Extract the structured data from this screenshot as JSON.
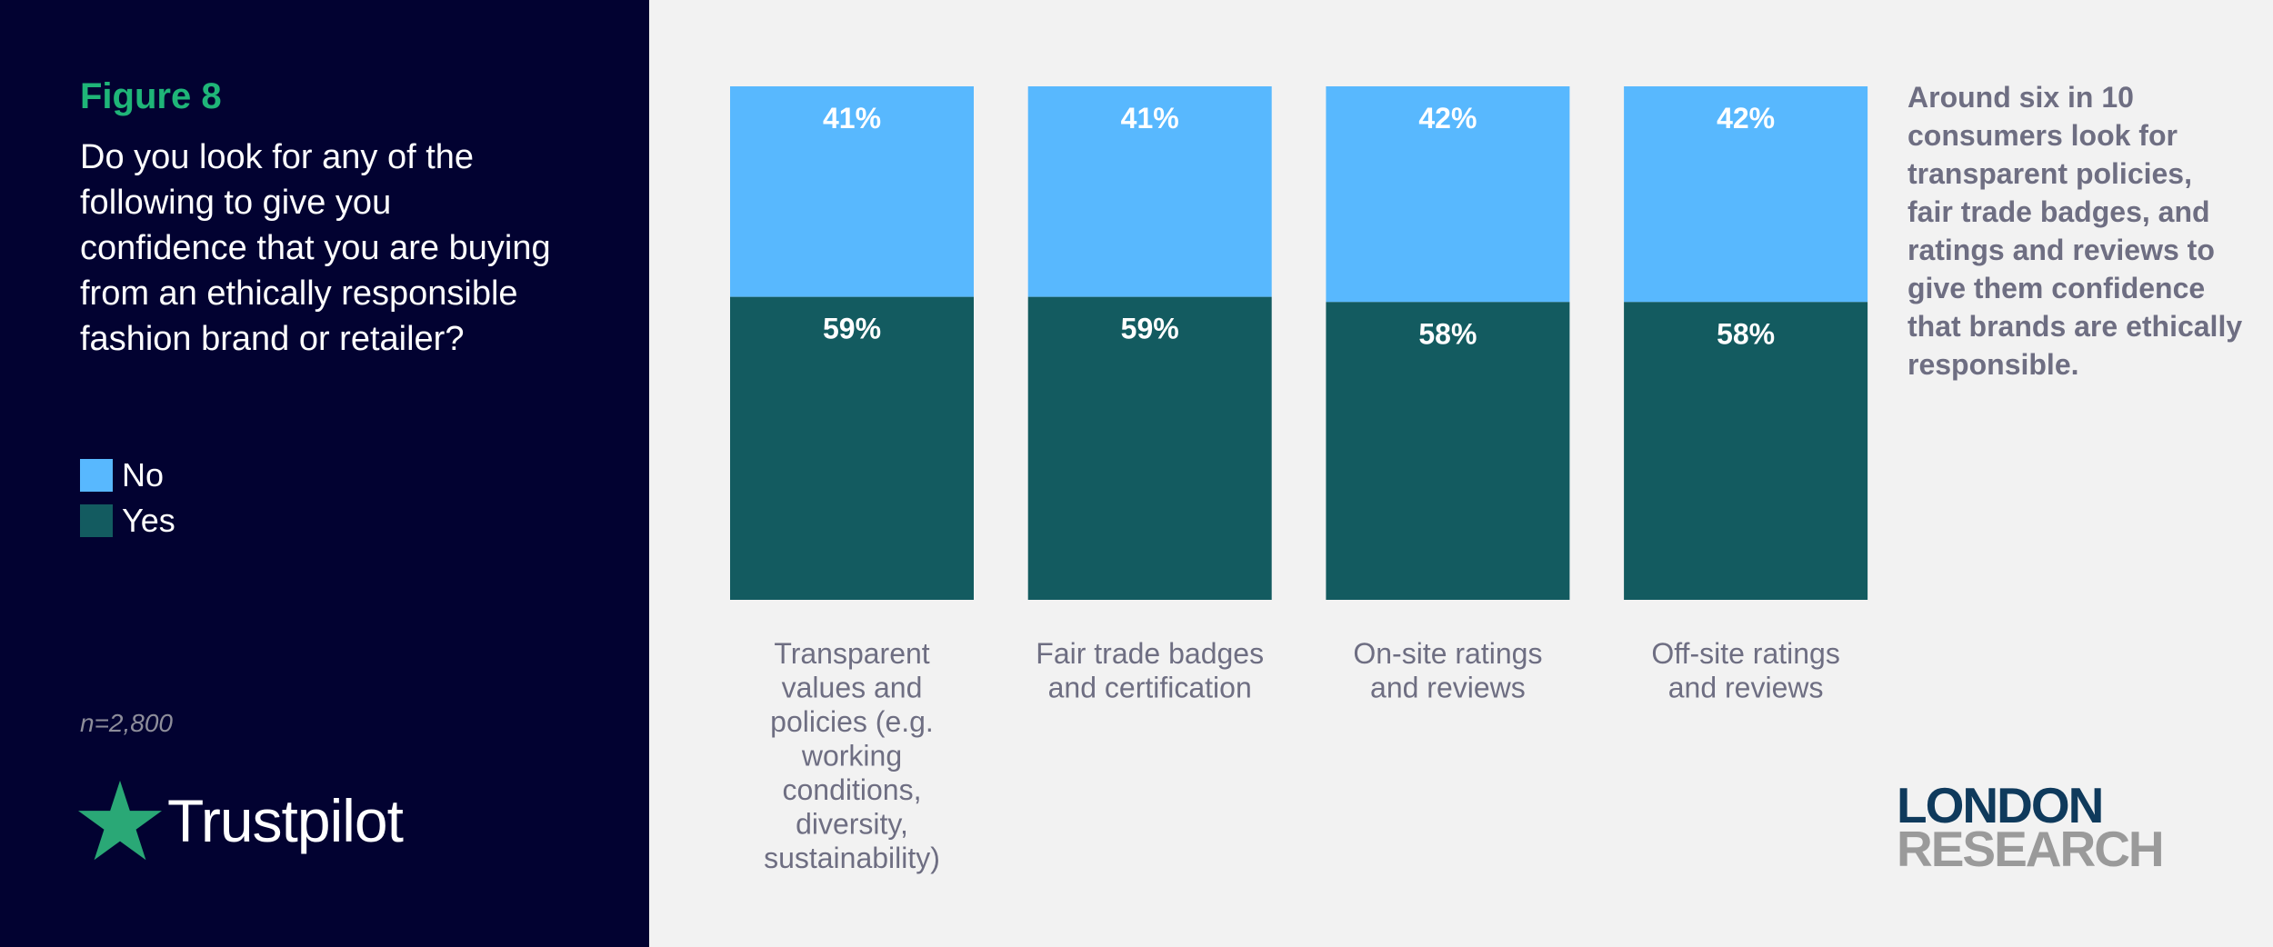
{
  "panel": {
    "figure_label": "Figure 8",
    "question": "Do you look for any of the following to give you confidence that you are buying from an ethically responsible fashion brand or retailer?",
    "sample_size": "n=2,800",
    "logo_text": "Trustpilot",
    "logo_icon": "star-icon",
    "logo_color": "#2aa876"
  },
  "annotation": "Around six in 10 consumers look for transparent policies, fair trade badges, and ratings and reviews to give them confidence that brands are ethically responsible.",
  "brand": {
    "line1": "LONDON",
    "line2": "RESEARCH"
  },
  "chart_data": {
    "type": "bar",
    "stacked": true,
    "percent_stacked": true,
    "title": "Do you look for any of the following to give you confidence that you are buying from an ethically responsible fashion brand or retailer?",
    "categories": [
      [
        "Transparent",
        "values and",
        "policies (e.g.",
        "working",
        "conditions,",
        "diversity,",
        "sustainability)"
      ],
      [
        "Fair trade badges",
        "and certification"
      ],
      [
        "On-site ratings",
        "and reviews"
      ],
      [
        "Off-site ratings",
        "and reviews"
      ]
    ],
    "series": [
      {
        "name": "Yes",
        "values": [
          59,
          59,
          58,
          58
        ],
        "labels": [
          "59%",
          "59%",
          "58%",
          "58%"
        ],
        "color": "#135b60"
      },
      {
        "name": "No",
        "values": [
          41,
          41,
          42,
          42
        ],
        "labels": [
          "41%",
          "41%",
          "42%",
          "42%"
        ],
        "color": "#58b8fe"
      }
    ],
    "ylim": [
      0,
      100
    ],
    "grid": false,
    "legend_position": "left"
  }
}
